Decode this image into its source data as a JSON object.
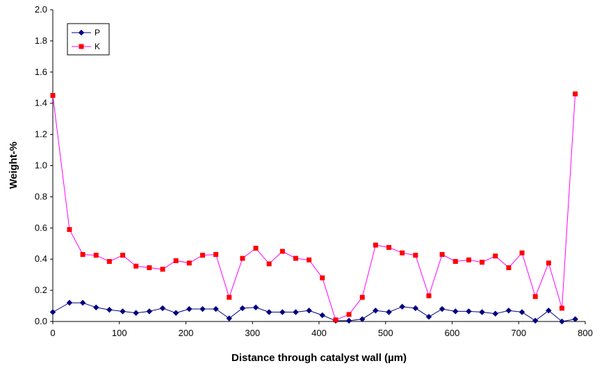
{
  "chart_data": {
    "type": "line",
    "xlabel": "Distance through catalyst wall (µm)",
    "ylabel": "Weight-%",
    "xlim": [
      0,
      800
    ],
    "ylim": [
      0,
      2.0
    ],
    "x_ticks": [
      0,
      100,
      200,
      300,
      400,
      500,
      600,
      700,
      800
    ],
    "y_ticks": [
      0.0,
      0.2,
      0.4,
      0.6,
      0.8,
      1.0,
      1.2,
      1.4,
      1.6,
      1.8,
      2.0
    ],
    "x_tick_labels": [
      "0",
      "100",
      "200",
      "300",
      "400",
      "500",
      "600",
      "700",
      "800"
    ],
    "y_tick_labels": [
      "0.0",
      "0.2",
      "0.4",
      "0.6",
      "0.8",
      "1.0",
      "1.2",
      "1.4",
      "1.6",
      "1.8",
      "2.0"
    ],
    "grid": false,
    "legend_position": "top-left",
    "x": [
      0,
      25,
      45,
      65,
      85,
      105,
      125,
      145,
      165,
      185,
      205,
      225,
      245,
      265,
      285,
      305,
      325,
      345,
      365,
      385,
      405,
      425,
      445,
      465,
      485,
      505,
      525,
      545,
      565,
      585,
      605,
      625,
      645,
      665,
      685,
      705,
      725,
      745,
      765,
      785
    ],
    "series": [
      {
        "name": "P",
        "color": "#000080",
        "marker": "diamond",
        "values": [
          0.06,
          0.12,
          0.12,
          0.09,
          0.075,
          0.065,
          0.055,
          0.065,
          0.085,
          0.055,
          0.08,
          0.08,
          0.08,
          0.02,
          0.085,
          0.09,
          0.06,
          0.06,
          0.06,
          0.07,
          0.04,
          0.005,
          0.005,
          0.015,
          0.07,
          0.06,
          0.095,
          0.085,
          0.03,
          0.08,
          0.065,
          0.065,
          0.06,
          0.05,
          0.07,
          0.06,
          0.005,
          0.07,
          0.0,
          0.015
        ]
      },
      {
        "name": "K",
        "color": "#FF00FF",
        "marker_color": "#FF0000",
        "marker": "square",
        "values": [
          1.45,
          0.59,
          0.43,
          0.425,
          0.385,
          0.425,
          0.355,
          0.345,
          0.335,
          0.39,
          0.375,
          0.425,
          0.43,
          0.155,
          0.405,
          0.47,
          0.37,
          0.45,
          0.405,
          0.395,
          0.28,
          0.01,
          0.045,
          0.155,
          0.49,
          0.475,
          0.44,
          0.425,
          0.165,
          0.43,
          0.385,
          0.395,
          0.38,
          0.42,
          0.345,
          0.44,
          0.16,
          0.375,
          0.085,
          1.46
        ]
      }
    ]
  }
}
